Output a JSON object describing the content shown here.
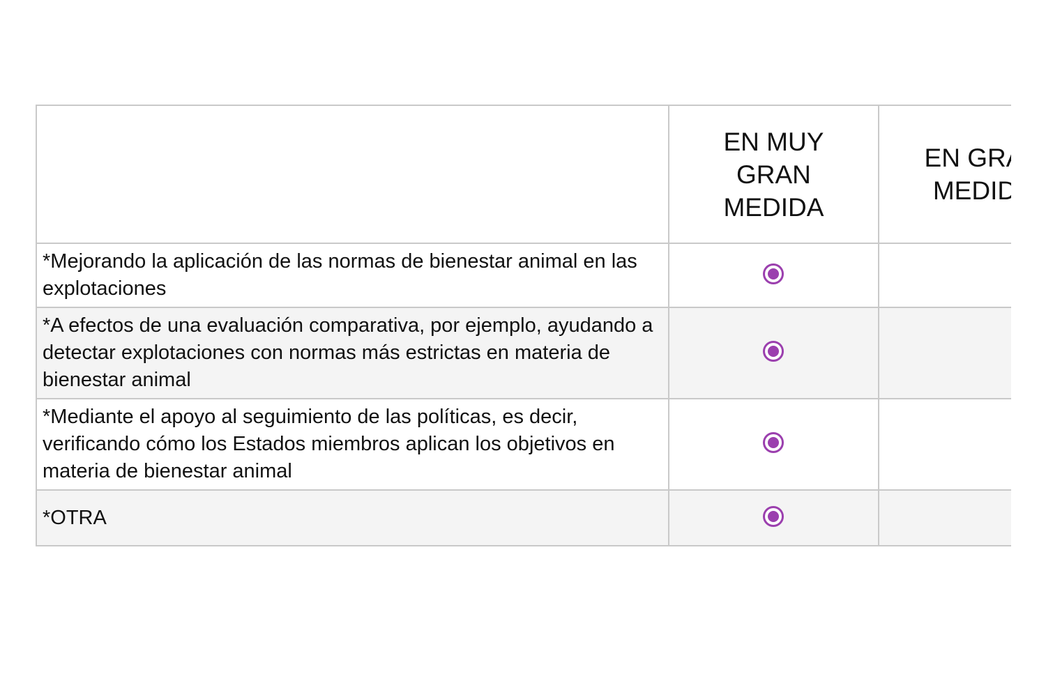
{
  "table": {
    "columns": [
      {
        "label": ""
      },
      {
        "label": "EN MUY GRAN MEDIDA"
      },
      {
        "label": "EN GRAN MEDIDA"
      }
    ],
    "rows": [
      {
        "label": "*Mejorando la aplicación de las normas de bienestar animal en las explotaciones",
        "selected": "EN MUY GRAN MEDIDA"
      },
      {
        "label": "*A efectos de una evaluación comparativa, por ejemplo, ayudando a detectar explotaciones con normas más estrictas en materia de bienestar animal",
        "selected": "EN MUY GRAN MEDIDA"
      },
      {
        "label": "*Mediante el apoyo al seguimiento de las políticas, es decir, verificando cómo los Estados miembros aplican los objetivos en materia de bienestar animal",
        "selected": "EN MUY GRAN MEDIDA"
      },
      {
        "label": "*OTRA",
        "selected": "EN MUY GRAN MEDIDA"
      }
    ]
  },
  "colors": {
    "accent": "#9b3fae",
    "border": "#c9c9c9",
    "row_alt": "#f4f4f4"
  },
  "icons": {
    "radio_selected": "radio-selected-icon"
  }
}
